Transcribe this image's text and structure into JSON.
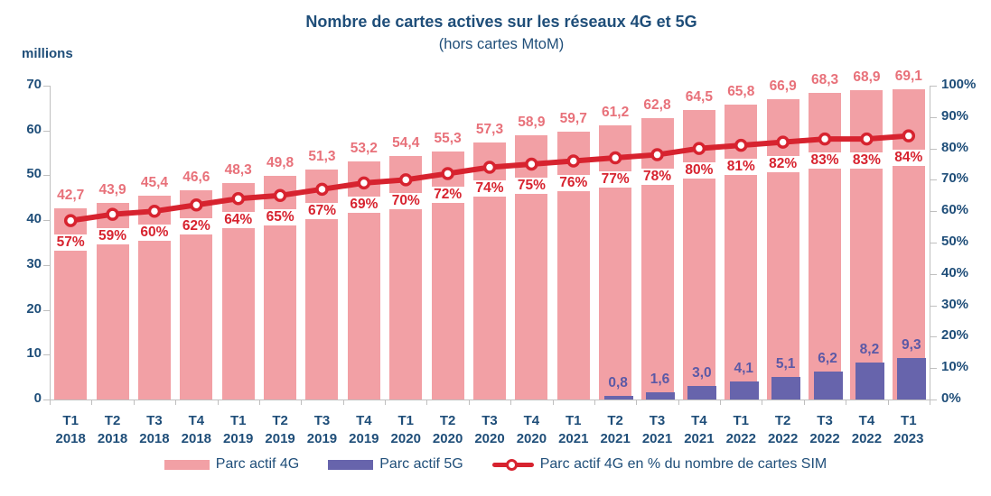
{
  "header": {
    "title": "Nombre de cartes actives sur les réseaux 4G et 5G",
    "subtitle": "(hors cartes MtoM)"
  },
  "axes": {
    "left_unit": "millions",
    "left_ticks": [
      "70",
      "60",
      "50",
      "40",
      "30",
      "20",
      "10",
      "0"
    ],
    "right_ticks": [
      "100%",
      "90%",
      "80%",
      "70%",
      "60%",
      "50%",
      "40%",
      "30%",
      "20%",
      "10%",
      "0%"
    ]
  },
  "colors": {
    "bar_4g": "#F2A0A5",
    "bar_5g": "#6764AC",
    "line": "#D7232F",
    "label_4g": "#E8717A",
    "label_5g": "#5B59A6",
    "label_pct": "#D7232F",
    "axis_text": "#1F4E79",
    "axis_line": "#BFBFBF"
  },
  "legend": {
    "items": [
      {
        "label": "Parc actif 4G",
        "swatch": "bar-4g"
      },
      {
        "label": "Parc actif 5G",
        "swatch": "bar-5g"
      },
      {
        "label": "Parc actif 4G en % du nombre de cartes SIM",
        "swatch": "line"
      }
    ]
  },
  "chart_data": {
    "type": "combo-bar-line",
    "categories": [
      "T1 2018",
      "T2 2018",
      "T3 2018",
      "T4 2018",
      "T1 2019",
      "T2 2019",
      "T3 2019",
      "T4 2019",
      "T1 2020",
      "T2 2020",
      "T3 2020",
      "T4 2020",
      "T1 2021",
      "T2 2021",
      "T3 2021",
      "T4 2021",
      "T1 2022",
      "T2 2022",
      "T3 2022",
      "T4 2022",
      "T1 2023"
    ],
    "series": [
      {
        "name": "Parc actif 4G",
        "type": "bar",
        "axis": "left",
        "values": [
          42.7,
          43.9,
          45.4,
          46.6,
          48.3,
          49.8,
          51.3,
          53.2,
          54.4,
          55.3,
          57.3,
          58.9,
          59.7,
          61.2,
          62.8,
          64.5,
          65.8,
          66.9,
          68.3,
          68.9,
          69.1
        ],
        "labels": [
          "42,7",
          "43,9",
          "45,4",
          "46,6",
          "48,3",
          "49,8",
          "51,3",
          "53,2",
          "54,4",
          "55,3",
          "57,3",
          "58,9",
          "59,7",
          "61,2",
          "62,8",
          "64,5",
          "65,8",
          "66,9",
          "68,3",
          "68,9",
          "69,1"
        ]
      },
      {
        "name": "Parc actif 5G",
        "type": "bar",
        "axis": "left",
        "values": [
          null,
          null,
          null,
          null,
          null,
          null,
          null,
          null,
          null,
          null,
          null,
          null,
          null,
          0.8,
          1.6,
          3.0,
          4.1,
          5.1,
          6.2,
          8.2,
          9.3
        ],
        "labels": [
          null,
          null,
          null,
          null,
          null,
          null,
          null,
          null,
          null,
          null,
          null,
          null,
          null,
          "0,8",
          "1,6",
          "3,0",
          "4,1",
          "5,1",
          "6,2",
          "8,2",
          "9,3"
        ]
      },
      {
        "name": "Parc actif 4G en % du nombre de cartes SIM",
        "type": "line",
        "axis": "right",
        "values": [
          57,
          59,
          60,
          62,
          64,
          65,
          67,
          69,
          70,
          72,
          74,
          75,
          76,
          77,
          78,
          80,
          81,
          82,
          83,
          83,
          84
        ],
        "labels": [
          "57%",
          "59%",
          "60%",
          "62%",
          "64%",
          "65%",
          "67%",
          "69%",
          "70%",
          "72%",
          "74%",
          "75%",
          "76%",
          "77%",
          "78%",
          "80%",
          "81%",
          "82%",
          "83%",
          "83%",
          "84%"
        ]
      }
    ],
    "left_axis": {
      "title": "millions",
      "min": 0,
      "max": 70,
      "tick_step": 10
    },
    "right_axis": {
      "min": 0,
      "max": 100,
      "tick_step": 10,
      "unit": "%"
    },
    "grid": false,
    "legend_position": "bottom"
  }
}
